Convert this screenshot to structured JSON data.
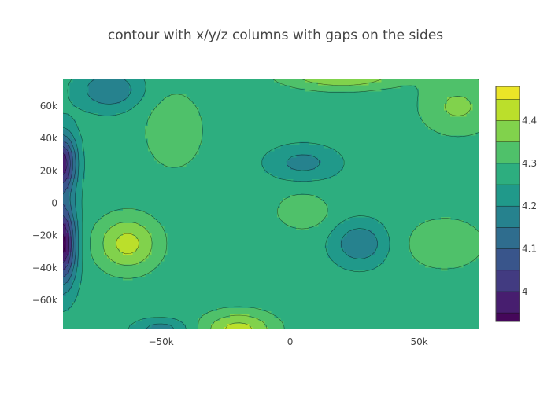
{
  "chart_data": {
    "type": "contour",
    "title": "contour with x/y/z columns with gaps on the sides",
    "xlabel": "",
    "ylabel": "",
    "xlim": [
      -88000,
      73000
    ],
    "ylim": [
      -78000,
      77000
    ],
    "x_ticks": [
      {
        "value": -50000,
        "label": "−50k"
      },
      {
        "value": 0,
        "label": "0"
      },
      {
        "value": 50000,
        "label": "50k"
      }
    ],
    "y_ticks": [
      {
        "value": 60000,
        "label": "60k"
      },
      {
        "value": 40000,
        "label": "40k"
      },
      {
        "value": 20000,
        "label": "20k"
      },
      {
        "value": 0,
        "label": "0"
      },
      {
        "value": -20000,
        "label": "−20k"
      },
      {
        "value": -40000,
        "label": "−40k"
      },
      {
        "value": -60000,
        "label": "−60k"
      }
    ],
    "z_range": [
      3.93,
      4.48
    ],
    "contour_levels": [
      3.95,
      4.0,
      4.05,
      4.1,
      4.15,
      4.2,
      4.25,
      4.3,
      4.35,
      4.4,
      4.45
    ],
    "colorscale": "viridis",
    "colorbar_ticks": [
      {
        "value": 4.0,
        "label": "4"
      },
      {
        "value": 4.1,
        "label": "4.1"
      },
      {
        "value": 4.2,
        "label": "4.2"
      },
      {
        "value": 4.3,
        "label": "4.3"
      },
      {
        "value": 4.4,
        "label": "4.4"
      }
    ],
    "grid": false,
    "features": [
      {
        "x": -88000,
        "y": -25000,
        "z": 3.93,
        "sx": 5000,
        "sy": 25000
      },
      {
        "x": -88000,
        "y": 25000,
        "z": 3.97,
        "sx": 5000,
        "sy": 18000
      },
      {
        "x": -63000,
        "y": -25000,
        "z": 4.42,
        "sx": 12000,
        "sy": 17000
      },
      {
        "x": 5000,
        "y": 25000,
        "z": 4.18,
        "sx": 13000,
        "sy": 10000
      },
      {
        "x": 5000,
        "y": -5000,
        "z": 4.35,
        "sx": 10000,
        "sy": 11000
      },
      {
        "x": 27000,
        "y": -25000,
        "z": 4.15,
        "sx": 10000,
        "sy": 13000
      },
      {
        "x": 60000,
        "y": -25000,
        "z": 4.34,
        "sx": 16000,
        "sy": 17000
      },
      {
        "x": 20000,
        "y": 80000,
        "z": 4.42,
        "sx": 22000,
        "sy": 9000
      },
      {
        "x": -45000,
        "y": 45000,
        "z": 4.34,
        "sx": 12000,
        "sy": 25000
      },
      {
        "x": -20000,
        "y": -78000,
        "z": 4.42,
        "sx": 14000,
        "sy": 11000
      },
      {
        "x": -50000,
        "y": -78000,
        "z": 4.17,
        "sx": 10000,
        "sy": 6000
      },
      {
        "x": -70000,
        "y": 70000,
        "z": 4.15,
        "sx": 12000,
        "sy": 12000
      },
      {
        "x": 65000,
        "y": 60000,
        "z": 4.36,
        "sx": 15000,
        "sy": 18000
      }
    ],
    "base_z": 4.27
  }
}
